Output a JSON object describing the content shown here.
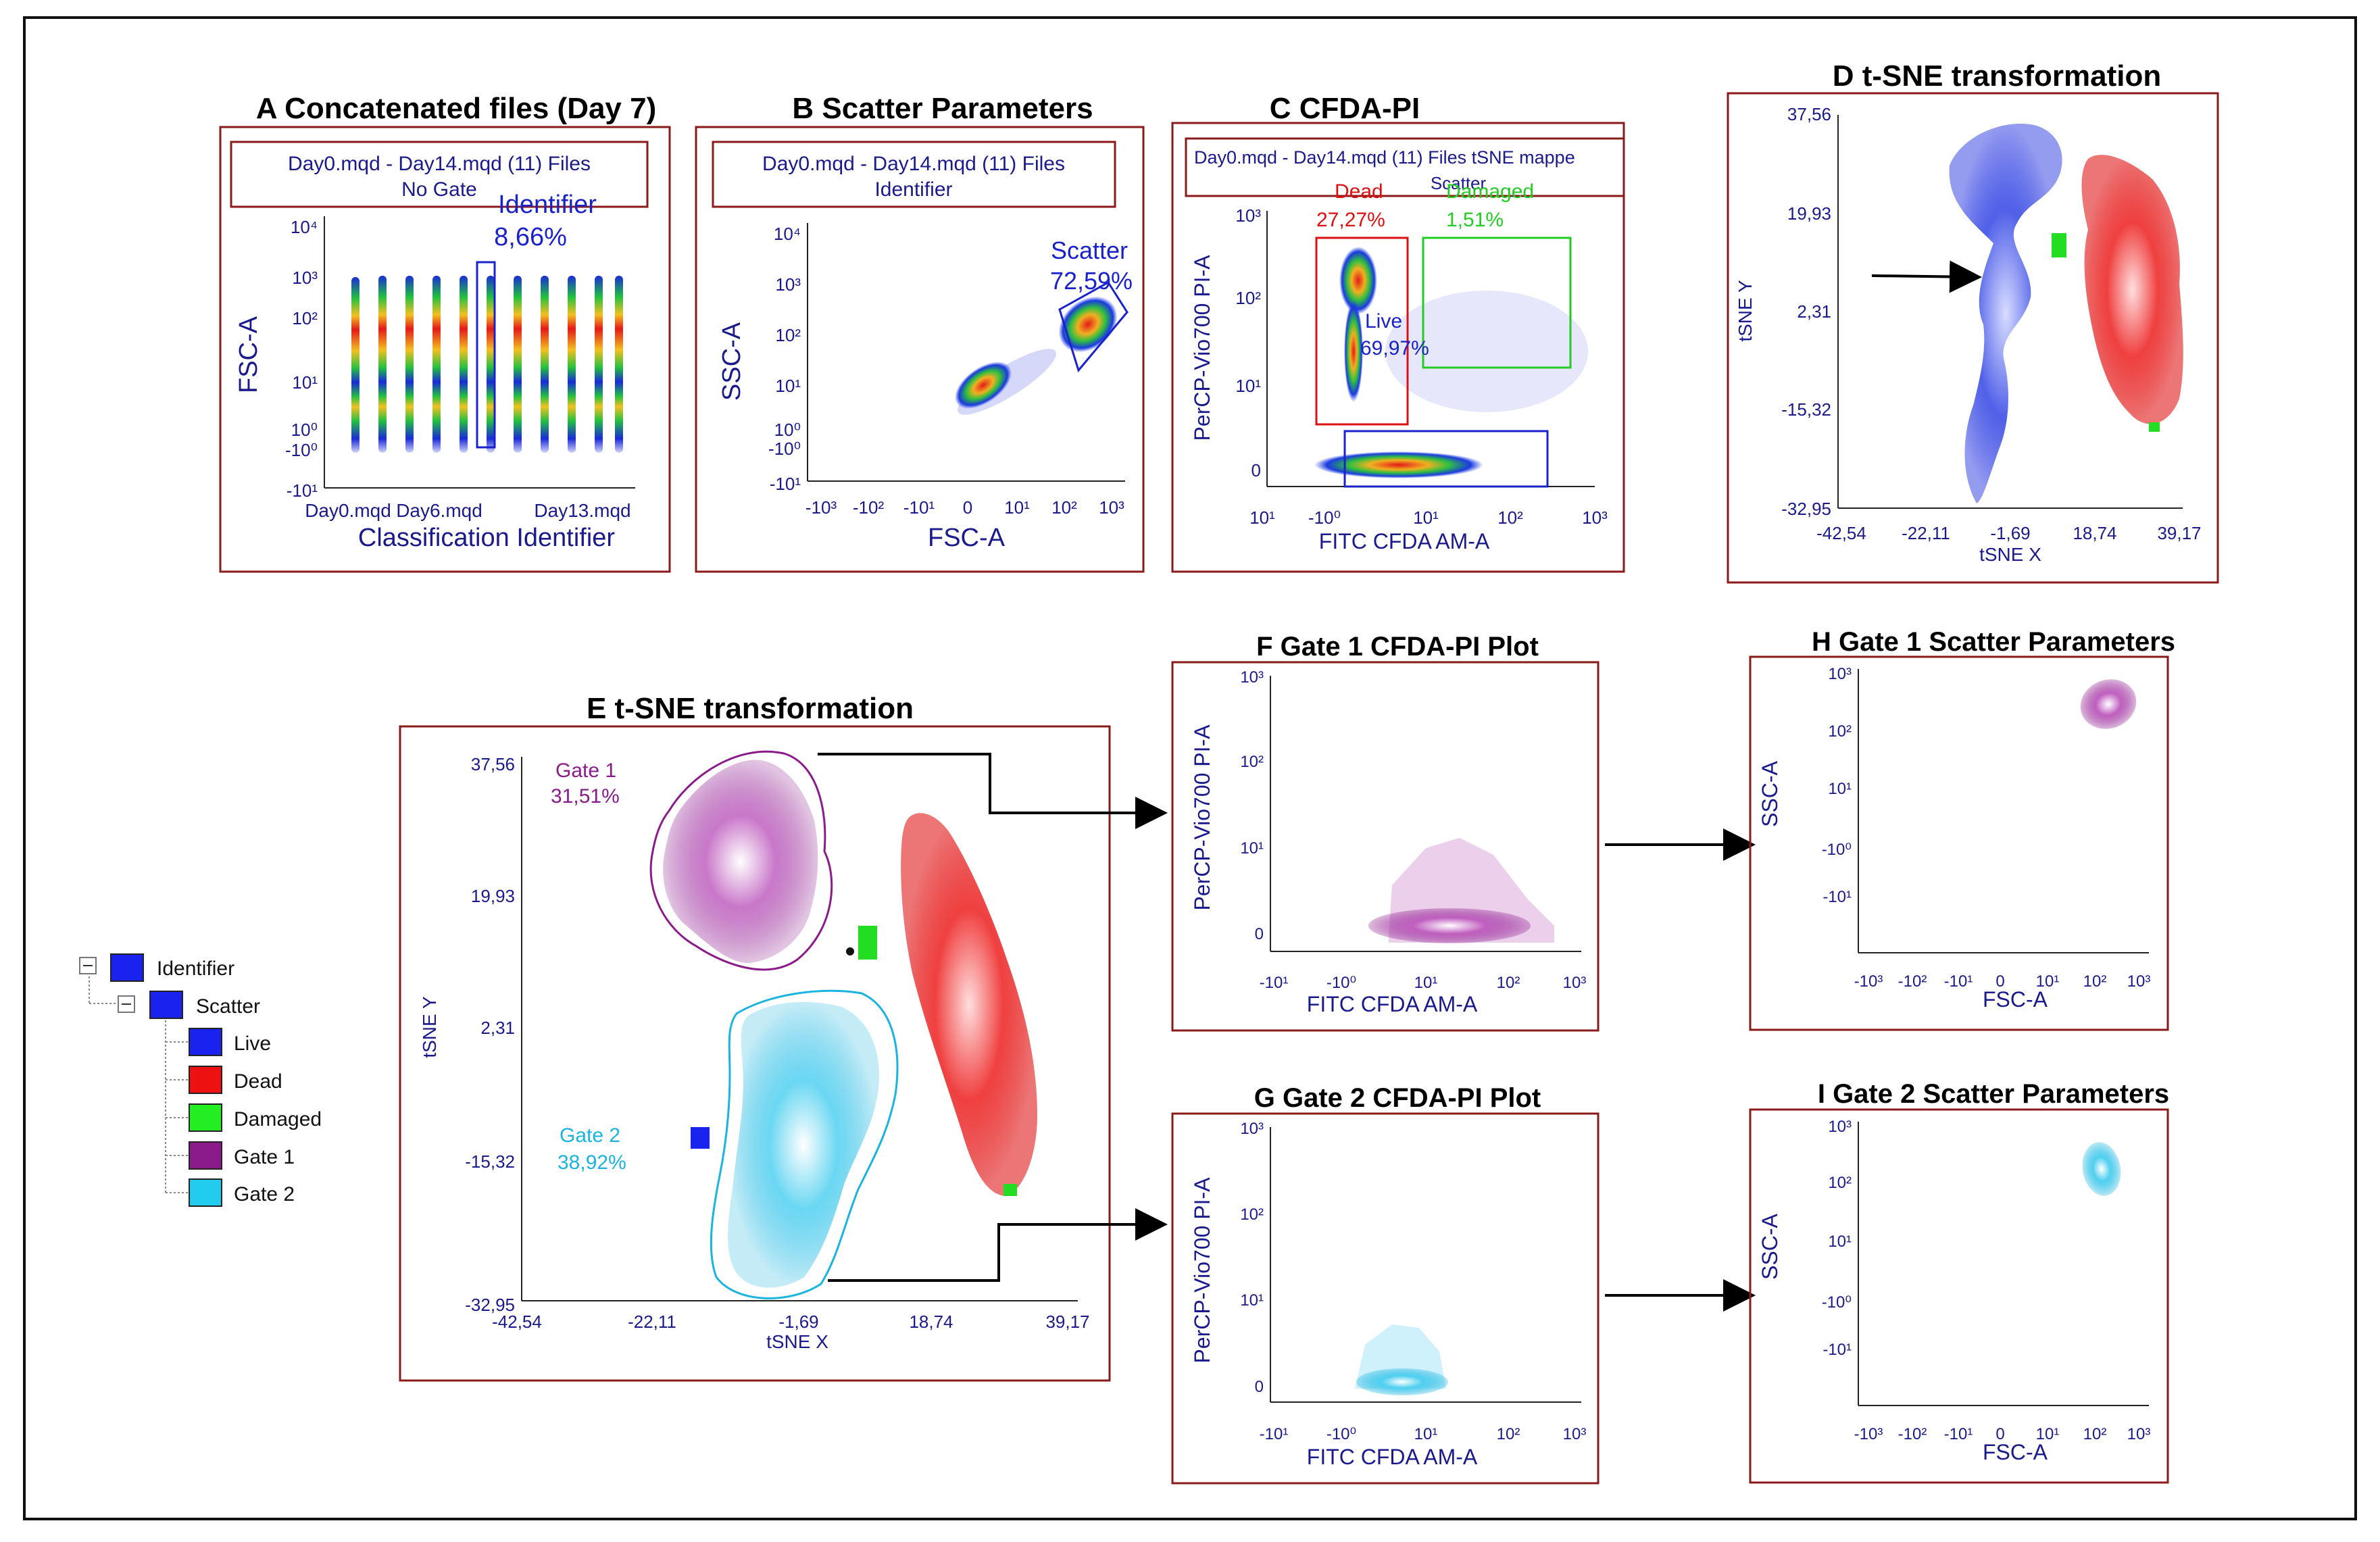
{
  "colors": {
    "axis_text": "#1a1a8c",
    "panel_border": "#8b1a1a",
    "gate_red": "#dd1111",
    "gate_green": "#22cc22",
    "gate_blue": "#1a22cc",
    "gate1_purple": "#8b1a8b",
    "gate2_cyan": "#1ab4e0",
    "dead_red": "#ee2222",
    "damaged_green": "#22dd22"
  },
  "panels": {
    "A": {
      "title": "A Concatenated files (Day 7)",
      "header_line1": "Day0.mqd - Day14.mqd (11) Files",
      "header_line2": "No Gate",
      "gate_label": "Identifier",
      "gate_pct": "8,66%",
      "ylabel": "FSC-A",
      "xlabel": "Classification Identifier",
      "yticks": [
        "10⁴",
        "10³",
        "10²",
        "10¹",
        "10⁰",
        "-10⁰",
        "-10¹"
      ],
      "xticks": [
        "Day0.mqd",
        "Day6.mqd",
        "Day13.mqd"
      ]
    },
    "B": {
      "title": "B Scatter Parameters",
      "header_line1": "Day0.mqd - Day14.mqd (11) Files",
      "header_line2": "Identifier",
      "gate_label": "Scatter",
      "gate_pct": "72,59%",
      "ylabel": "SSC-A",
      "xlabel": "FSC-A",
      "yticks": [
        "10⁴",
        "10³",
        "10²",
        "10¹",
        "10⁰",
        "-10⁰",
        "-10¹"
      ],
      "xticks": [
        "-10³",
        "-10²",
        "-10¹",
        "0",
        "10¹",
        "10²",
        "10³"
      ]
    },
    "C": {
      "title": "C CFDA-PI",
      "header_line1": "Day0.mqd - Day14.mqd (11) Files tSNE mappe",
      "header_line2": "Scatter",
      "dead_label": "Dead",
      "dead_pct": "27,27%",
      "damaged_label": "Damaged",
      "damaged_pct": "1,51%",
      "live_label": "Live",
      "live_pct": "69,97%",
      "ylabel": "PerCP-Vio700 PI-A",
      "xlabel": "FITC CFDA AM-A",
      "yticks": [
        "10³",
        "10²",
        "10¹",
        "0"
      ],
      "xticks": [
        "10¹",
        "-10⁰",
        "10¹",
        "10²",
        "10³"
      ]
    },
    "D": {
      "title": "D t-SNE transformation",
      "ylabel": "tSNE Y",
      "xlabel": "tSNE X",
      "yticks": [
        "37,56",
        "19,93",
        "2,31",
        "-15,32",
        "-32,95"
      ],
      "xticks": [
        "-42,54",
        "-22,11",
        "-1,69",
        "18,74",
        "39,17"
      ]
    },
    "E": {
      "title": "E t-SNE transformation",
      "gate1_label": "Gate 1",
      "gate1_pct": "31,51%",
      "gate2_label": "Gate 2",
      "gate2_pct": "38,92%",
      "ylabel": "tSNE Y",
      "xlabel": "tSNE X",
      "yticks": [
        "37,56",
        "19,93",
        "2,31",
        "-15,32",
        "-32,95"
      ],
      "xticks": [
        "-42,54",
        "-22,11",
        "-1,69",
        "18,74",
        "39,17"
      ]
    },
    "F": {
      "title": "F Gate 1 CFDA-PI Plot",
      "ylabel": "PerCP-Vio700 PI-A",
      "xlabel": "FITC CFDA AM-A",
      "yticks": [
        "10³",
        "10²",
        "10¹",
        "0"
      ],
      "xticks": [
        "-10¹",
        "-10⁰",
        "10¹",
        "10²",
        "10³"
      ]
    },
    "G": {
      "title": "G Gate 2 CFDA-PI Plot",
      "ylabel": "PerCP-Vio700 PI-A",
      "xlabel": "FITC CFDA AM-A",
      "yticks": [
        "10³",
        "10²",
        "10¹",
        "0"
      ],
      "xticks": [
        "-10¹",
        "-10⁰",
        "10¹",
        "10²",
        "10³"
      ]
    },
    "H": {
      "title": "H Gate 1 Scatter Parameters",
      "ylabel": "SSC-A",
      "xlabel": "FSC-A",
      "yticks": [
        "10³",
        "10²",
        "10¹",
        "-10⁰",
        "-10¹"
      ],
      "xticks": [
        "-10³",
        "-10²",
        "-10¹",
        "0",
        "10¹",
        "10²",
        "10³"
      ]
    },
    "I": {
      "title": "I Gate 2 Scatter Parameters",
      "ylabel": "SSC-A",
      "xlabel": "FSC-A",
      "yticks": [
        "10³",
        "10²",
        "10¹",
        "-10⁰",
        "-10¹"
      ],
      "xticks": [
        "-10³",
        "-10²",
        "-10¹",
        "0",
        "10¹",
        "10²",
        "10³"
      ]
    }
  },
  "legend": {
    "items": [
      {
        "label": "Identifier",
        "color": "#1a22ee"
      },
      {
        "label": "Scatter",
        "color": "#1a22ee"
      },
      {
        "label": "Live",
        "color": "#1a22ee"
      },
      {
        "label": "Dead",
        "color": "#ee1111"
      },
      {
        "label": "Damaged",
        "color": "#22ee22"
      },
      {
        "label": "Gate 1",
        "color": "#8b1a8b"
      },
      {
        "label": "Gate 2",
        "color": "#22ccee"
      }
    ]
  }
}
